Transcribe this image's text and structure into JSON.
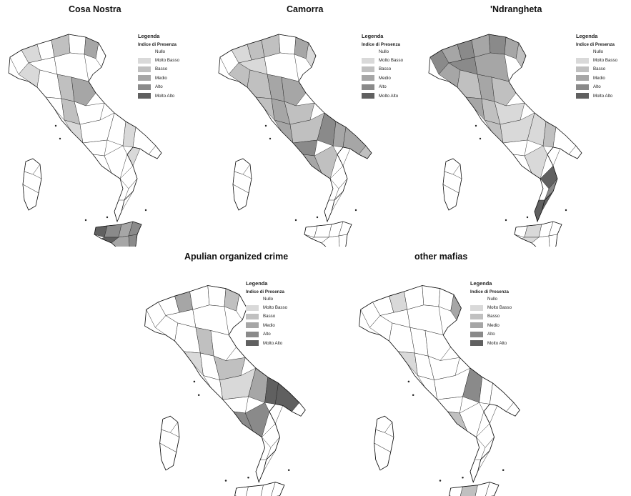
{
  "legend": {
    "heading": "Legenda",
    "subheading": "Indice di Presenza",
    "levels": [
      {
        "label": "Nullo",
        "color": "#ffffff"
      },
      {
        "label": "Molto Basso",
        "color": "#d9d9d9"
      },
      {
        "label": "Basso",
        "color": "#c0c0c0"
      },
      {
        "label": "Medio",
        "color": "#a6a6a6"
      },
      {
        "label": "Alto",
        "color": "#8a8a8a"
      },
      {
        "label": "Molto Alto",
        "color": "#606060"
      }
    ]
  },
  "maps": [
    {
      "title": "Cosa Nostra",
      "hotspots": [
        "sicily",
        "veneto-border",
        "central-belt"
      ]
    },
    {
      "title": "Camorra",
      "hotspots": [
        "campania",
        "central-belt",
        "lazio"
      ]
    },
    {
      "title": "'Ndrangheta",
      "hotspots": [
        "calabria",
        "north-west",
        "north"
      ]
    },
    {
      "title": "Apulian organized crime",
      "hotspots": [
        "puglia",
        "lombardy-east",
        "central-belt"
      ]
    },
    {
      "title": "other mafias",
      "hotspots": [
        "basilicata",
        "veneto-east",
        "sicily-south"
      ]
    }
  ]
}
